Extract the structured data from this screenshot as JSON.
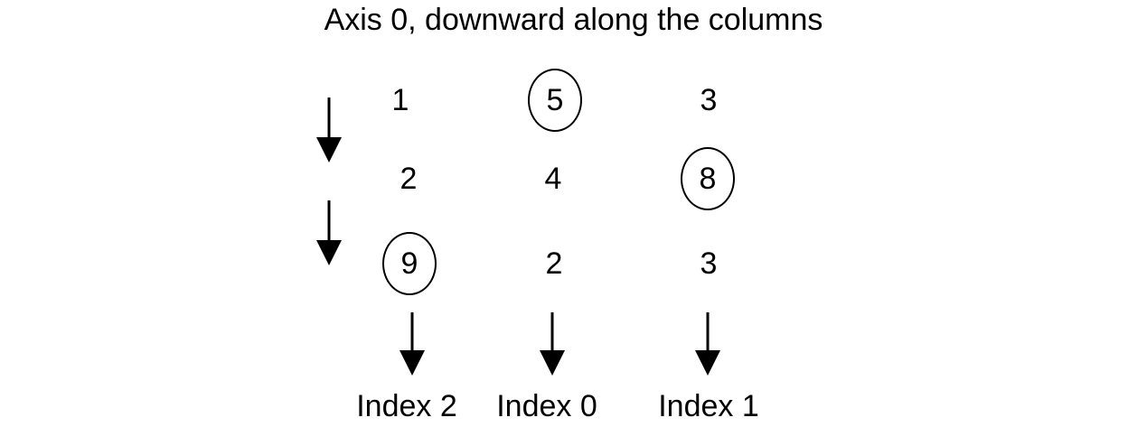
{
  "title": "Axis 0, downward along the columns",
  "matrix": {
    "rows": [
      [
        {
          "value": "1",
          "highlighted": false
        },
        {
          "value": "5",
          "highlighted": true
        },
        {
          "value": "3",
          "highlighted": false
        }
      ],
      [
        {
          "value": "2",
          "highlighted": false
        },
        {
          "value": "4",
          "highlighted": false
        },
        {
          "value": "8",
          "highlighted": true
        }
      ],
      [
        {
          "value": "9",
          "highlighted": true
        },
        {
          "value": "2",
          "highlighted": false
        },
        {
          "value": "3",
          "highlighted": false
        }
      ]
    ]
  },
  "index_labels": [
    "Index 2",
    "Index 0",
    "Index 1"
  ],
  "colors": {
    "stroke": "#000000",
    "background": "#ffffff"
  }
}
